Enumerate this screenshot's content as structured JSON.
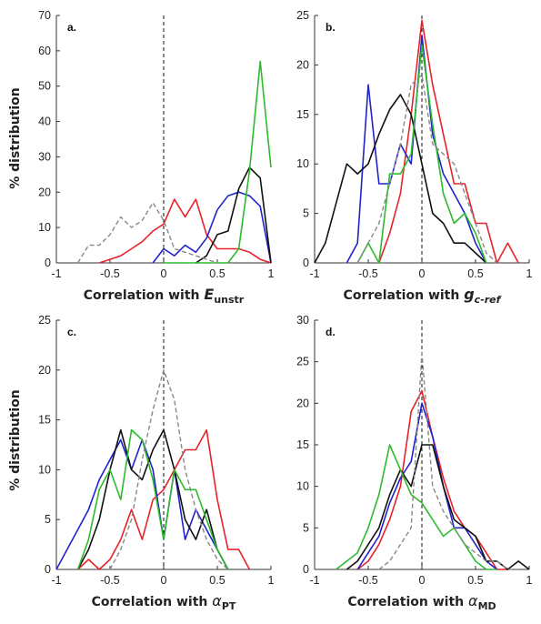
{
  "figure": {
    "ylabel": "% distribution"
  },
  "chart_data": [
    {
      "type": "line",
      "panel_label": "a.",
      "xlabel_prefix": "Correlation with ",
      "xlabel_symbol": "E",
      "xlabel_sub": "unstr",
      "xlabel_symbol_style": "bold-italic",
      "xlim": [
        -1,
        1
      ],
      "ylim": [
        0,
        70
      ],
      "xticks": [
        "-1",
        "-0.5",
        "0",
        "0.5",
        "1"
      ],
      "yticks": [
        "0",
        "10",
        "20",
        "30",
        "40",
        "50",
        "60",
        "70"
      ],
      "ytick_values": [
        0,
        10,
        20,
        30,
        40,
        50,
        60,
        70
      ],
      "zero_line": true,
      "series": [
        {
          "color": "#e8222a",
          "dashed": false,
          "x": [
            -0.6,
            -0.5,
            -0.4,
            -0.3,
            -0.2,
            -0.1,
            0,
            0.1,
            0.2,
            0.3,
            0.4,
            0.5,
            0.6,
            0.7,
            0.8,
            0.9,
            1.0
          ],
          "y": [
            0,
            1,
            2,
            4,
            6,
            9,
            11,
            18,
            13,
            18,
            8,
            4,
            4,
            4,
            3,
            1,
            0
          ]
        },
        {
          "color": "#2222cc",
          "dashed": false,
          "x": [
            -0.1,
            0,
            0.1,
            0.2,
            0.3,
            0.4,
            0.5,
            0.6,
            0.7,
            0.8,
            0.9,
            1.0
          ],
          "y": [
            0,
            4,
            2,
            5,
            3,
            7,
            15,
            19,
            20,
            19,
            16,
            0
          ]
        },
        {
          "color": "#111111",
          "dashed": false,
          "x": [
            0.3,
            0.4,
            0.5,
            0.6,
            0.7,
            0.8,
            0.9,
            1.0
          ],
          "y": [
            0,
            2,
            8,
            9,
            21,
            27,
            24,
            0
          ]
        },
        {
          "color": "#2dbb2d",
          "dashed": false,
          "x": [
            0,
            0.1,
            0.2,
            0.3,
            0.4,
            0.5,
            0.6,
            0.7,
            0.8,
            0.9,
            1.0
          ],
          "y": [
            0,
            0,
            0,
            0,
            0,
            0,
            0,
            4,
            26,
            57,
            27
          ]
        },
        {
          "color": "#888888",
          "dashed": true,
          "x": [
            -0.8,
            -0.7,
            -0.6,
            -0.5,
            -0.4,
            -0.3,
            -0.2,
            -0.1,
            0,
            0.1,
            0.2,
            0.3,
            0.4,
            0.5
          ],
          "y": [
            0,
            5,
            5,
            8,
            13,
            10,
            12,
            17,
            12,
            4,
            3,
            2,
            1,
            0
          ]
        }
      ]
    },
    {
      "type": "line",
      "panel_label": "b.",
      "xlabel_prefix": "Correlation with  ",
      "xlabel_symbol": "g",
      "xlabel_sub": "c-ref",
      "xlabel_symbol_style": "bold-italic",
      "xlim": [
        -1,
        1
      ],
      "ylim": [
        0,
        25
      ],
      "xticks": [
        "-1",
        "-0.5",
        "0",
        "0.5",
        "1"
      ],
      "yticks": [
        "0",
        "5",
        "10",
        "15",
        "20",
        "25"
      ],
      "ytick_values": [
        0,
        5,
        10,
        15,
        20,
        25
      ],
      "zero_line": true,
      "series": [
        {
          "color": "#e8222a",
          "dashed": false,
          "x": [
            -0.4,
            -0.3,
            -0.2,
            -0.1,
            0,
            0.1,
            0.2,
            0.3,
            0.4,
            0.5,
            0.6,
            0.7,
            0.8,
            0.9
          ],
          "y": [
            0,
            3,
            7,
            15,
            24.5,
            18,
            13,
            8,
            8,
            4,
            4,
            0,
            2,
            0
          ]
        },
        {
          "color": "#2222cc",
          "dashed": false,
          "x": [
            -0.7,
            -0.6,
            -0.5,
            -0.4,
            -0.3,
            -0.2,
            -0.1,
            0,
            0.1,
            0.2,
            0.3,
            0.4,
            0.5,
            0.6
          ],
          "y": [
            0,
            2,
            18,
            8,
            8,
            12,
            10,
            23,
            13,
            9,
            7,
            5,
            2,
            0
          ]
        },
        {
          "color": "#111111",
          "dashed": false,
          "x": [
            -1,
            -0.9,
            -0.8,
            -0.7,
            -0.6,
            -0.5,
            -0.4,
            -0.3,
            -0.2,
            -0.1,
            0,
            0.1,
            0.2,
            0.3,
            0.4,
            0.5,
            0.6
          ],
          "y": [
            0,
            2,
            6,
            10,
            9,
            10,
            13,
            15.5,
            17,
            15,
            10,
            5,
            4,
            2,
            2,
            1,
            0
          ]
        },
        {
          "color": "#2dbb2d",
          "dashed": false,
          "x": [
            -0.6,
            -0.5,
            -0.4,
            -0.3,
            -0.2,
            -0.1,
            0,
            0.1,
            0.2,
            0.3,
            0.4,
            0.5,
            0.6
          ],
          "y": [
            0,
            2,
            0,
            9,
            9,
            11,
            22,
            14,
            7,
            4,
            5,
            3,
            0
          ]
        },
        {
          "color": "#888888",
          "dashed": true,
          "x": [
            -0.6,
            -0.5,
            -0.4,
            -0.3,
            -0.2,
            -0.1,
            0,
            0.1,
            0.2,
            0.3,
            0.4,
            0.5,
            0.6,
            0.7
          ],
          "y": [
            0,
            2,
            4,
            8,
            12,
            18,
            19,
            12,
            11,
            10,
            7,
            4,
            1,
            0
          ]
        }
      ]
    },
    {
      "type": "line",
      "panel_label": "c.",
      "xlabel_prefix": "Correlation with ",
      "xlabel_symbol": "α",
      "xlabel_sub": "PT",
      "xlabel_symbol_style": "italic",
      "xlim": [
        -1,
        1
      ],
      "ylim": [
        0,
        25
      ],
      "xticks": [
        "-1",
        "-0.5",
        "0",
        "0.5",
        "1"
      ],
      "yticks": [
        "0",
        "5",
        "10",
        "15",
        "20",
        "25"
      ],
      "ytick_values": [
        0,
        5,
        10,
        15,
        20,
        25
      ],
      "zero_line": true,
      "series": [
        {
          "color": "#e8222a",
          "dashed": false,
          "x": [
            -0.8,
            -0.7,
            -0.6,
            -0.5,
            -0.4,
            -0.3,
            -0.2,
            -0.1,
            0,
            0.1,
            0.2,
            0.3,
            0.4,
            0.5,
            0.6,
            0.7,
            0.8
          ],
          "y": [
            0,
            1,
            0,
            1,
            3,
            6,
            3,
            7,
            8,
            10,
            12,
            12,
            14,
            7,
            2,
            2,
            0
          ]
        },
        {
          "color": "#2222cc",
          "dashed": false,
          "x": [
            -1,
            -0.9,
            -0.8,
            -0.7,
            -0.6,
            -0.5,
            -0.4,
            -0.3,
            -0.2,
            -0.1,
            0,
            0.1,
            0.2,
            0.3,
            0.4,
            0.5,
            0.6
          ],
          "y": [
            0,
            2,
            4,
            6,
            9,
            11,
            13,
            10,
            13,
            10,
            3,
            10,
            3,
            6,
            4,
            2,
            0
          ]
        },
        {
          "color": "#111111",
          "dashed": false,
          "x": [
            -0.8,
            -0.7,
            -0.6,
            -0.5,
            -0.4,
            -0.3,
            -0.2,
            -0.1,
            0,
            0.1,
            0.2,
            0.3,
            0.4,
            0.5,
            0.6
          ],
          "y": [
            0,
            2,
            5,
            10,
            14,
            10,
            9,
            12,
            14,
            10,
            5,
            3,
            6,
            2,
            0
          ]
        },
        {
          "color": "#2dbb2d",
          "dashed": false,
          "x": [
            -0.8,
            -0.7,
            -0.6,
            -0.5,
            -0.4,
            -0.3,
            -0.2,
            -0.1,
            0,
            0.1,
            0.2,
            0.3,
            0.4,
            0.5,
            0.6
          ],
          "y": [
            0,
            3,
            8,
            10,
            7,
            14,
            13,
            9,
            3,
            10,
            8,
            8,
            5,
            2,
            0
          ]
        },
        {
          "color": "#888888",
          "dashed": true,
          "x": [
            -0.5,
            -0.4,
            -0.3,
            -0.2,
            -0.1,
            0,
            0.1,
            0.2,
            0.3,
            0.4,
            0.5,
            0.6
          ],
          "y": [
            0,
            2,
            5,
            11,
            16,
            20,
            17,
            10,
            6,
            3,
            1,
            0
          ]
        }
      ]
    },
    {
      "type": "line",
      "panel_label": "d.",
      "xlabel_prefix": "Correlation with ",
      "xlabel_symbol": "α",
      "xlabel_sub": "MD",
      "xlabel_symbol_style": "italic",
      "xlim": [
        -1,
        1
      ],
      "ylim": [
        0,
        30
      ],
      "xticks": [
        "-1",
        "-0.5",
        "0",
        "0.5",
        "1"
      ],
      "yticks": [
        "0",
        "5",
        "10",
        "15",
        "20",
        "25",
        "30"
      ],
      "ytick_values": [
        0,
        5,
        10,
        15,
        20,
        25,
        30
      ],
      "zero_line": true,
      "series": [
        {
          "color": "#e8222a",
          "dashed": false,
          "x": [
            -0.6,
            -0.5,
            -0.4,
            -0.3,
            -0.2,
            -0.1,
            0,
            0.1,
            0.2,
            0.3,
            0.4,
            0.5,
            0.6,
            0.7,
            0.8
          ],
          "y": [
            0,
            1,
            3,
            6,
            10,
            19,
            21.5,
            16,
            11,
            7,
            5,
            4,
            2,
            0,
            0
          ]
        },
        {
          "color": "#2222cc",
          "dashed": false,
          "x": [
            -0.6,
            -0.5,
            -0.4,
            -0.3,
            -0.2,
            -0.1,
            0,
            0.1,
            0.2,
            0.3,
            0.4,
            0.5,
            0.6,
            0.7
          ],
          "y": [
            0,
            2,
            4,
            8,
            11,
            13,
            20,
            16,
            10,
            5,
            5,
            3,
            1,
            0
          ]
        },
        {
          "color": "#111111",
          "dashed": false,
          "x": [
            -0.7,
            -0.6,
            -0.5,
            -0.4,
            -0.3,
            -0.2,
            -0.1,
            0,
            0.1,
            0.2,
            0.3,
            0.4,
            0.5,
            0.6,
            0.7,
            0.8,
            0.9,
            1.0
          ],
          "y": [
            0,
            1,
            3,
            5,
            9,
            12,
            10,
            15,
            15,
            10,
            6,
            5,
            4,
            1,
            1,
            0,
            1,
            0
          ]
        },
        {
          "color": "#2dbb2d",
          "dashed": false,
          "x": [
            -0.8,
            -0.7,
            -0.6,
            -0.5,
            -0.4,
            -0.3,
            -0.2,
            -0.1,
            0,
            0.1,
            0.2,
            0.3,
            0.4,
            0.5,
            0.6,
            0.7
          ],
          "y": [
            0,
            1,
            2,
            5,
            9,
            15,
            12,
            9,
            8,
            6,
            4,
            5,
            3,
            1,
            0,
            0
          ]
        },
        {
          "color": "#888888",
          "dashed": true,
          "x": [
            -0.4,
            -0.3,
            -0.2,
            -0.1,
            0,
            0.1,
            0.2,
            0.3,
            0.4,
            0.5,
            0.6,
            0.7,
            0.8,
            0.9
          ],
          "y": [
            0,
            1,
            3,
            5,
            26,
            10,
            7,
            5,
            3,
            2,
            1,
            1,
            0,
            0
          ]
        }
      ]
    }
  ]
}
